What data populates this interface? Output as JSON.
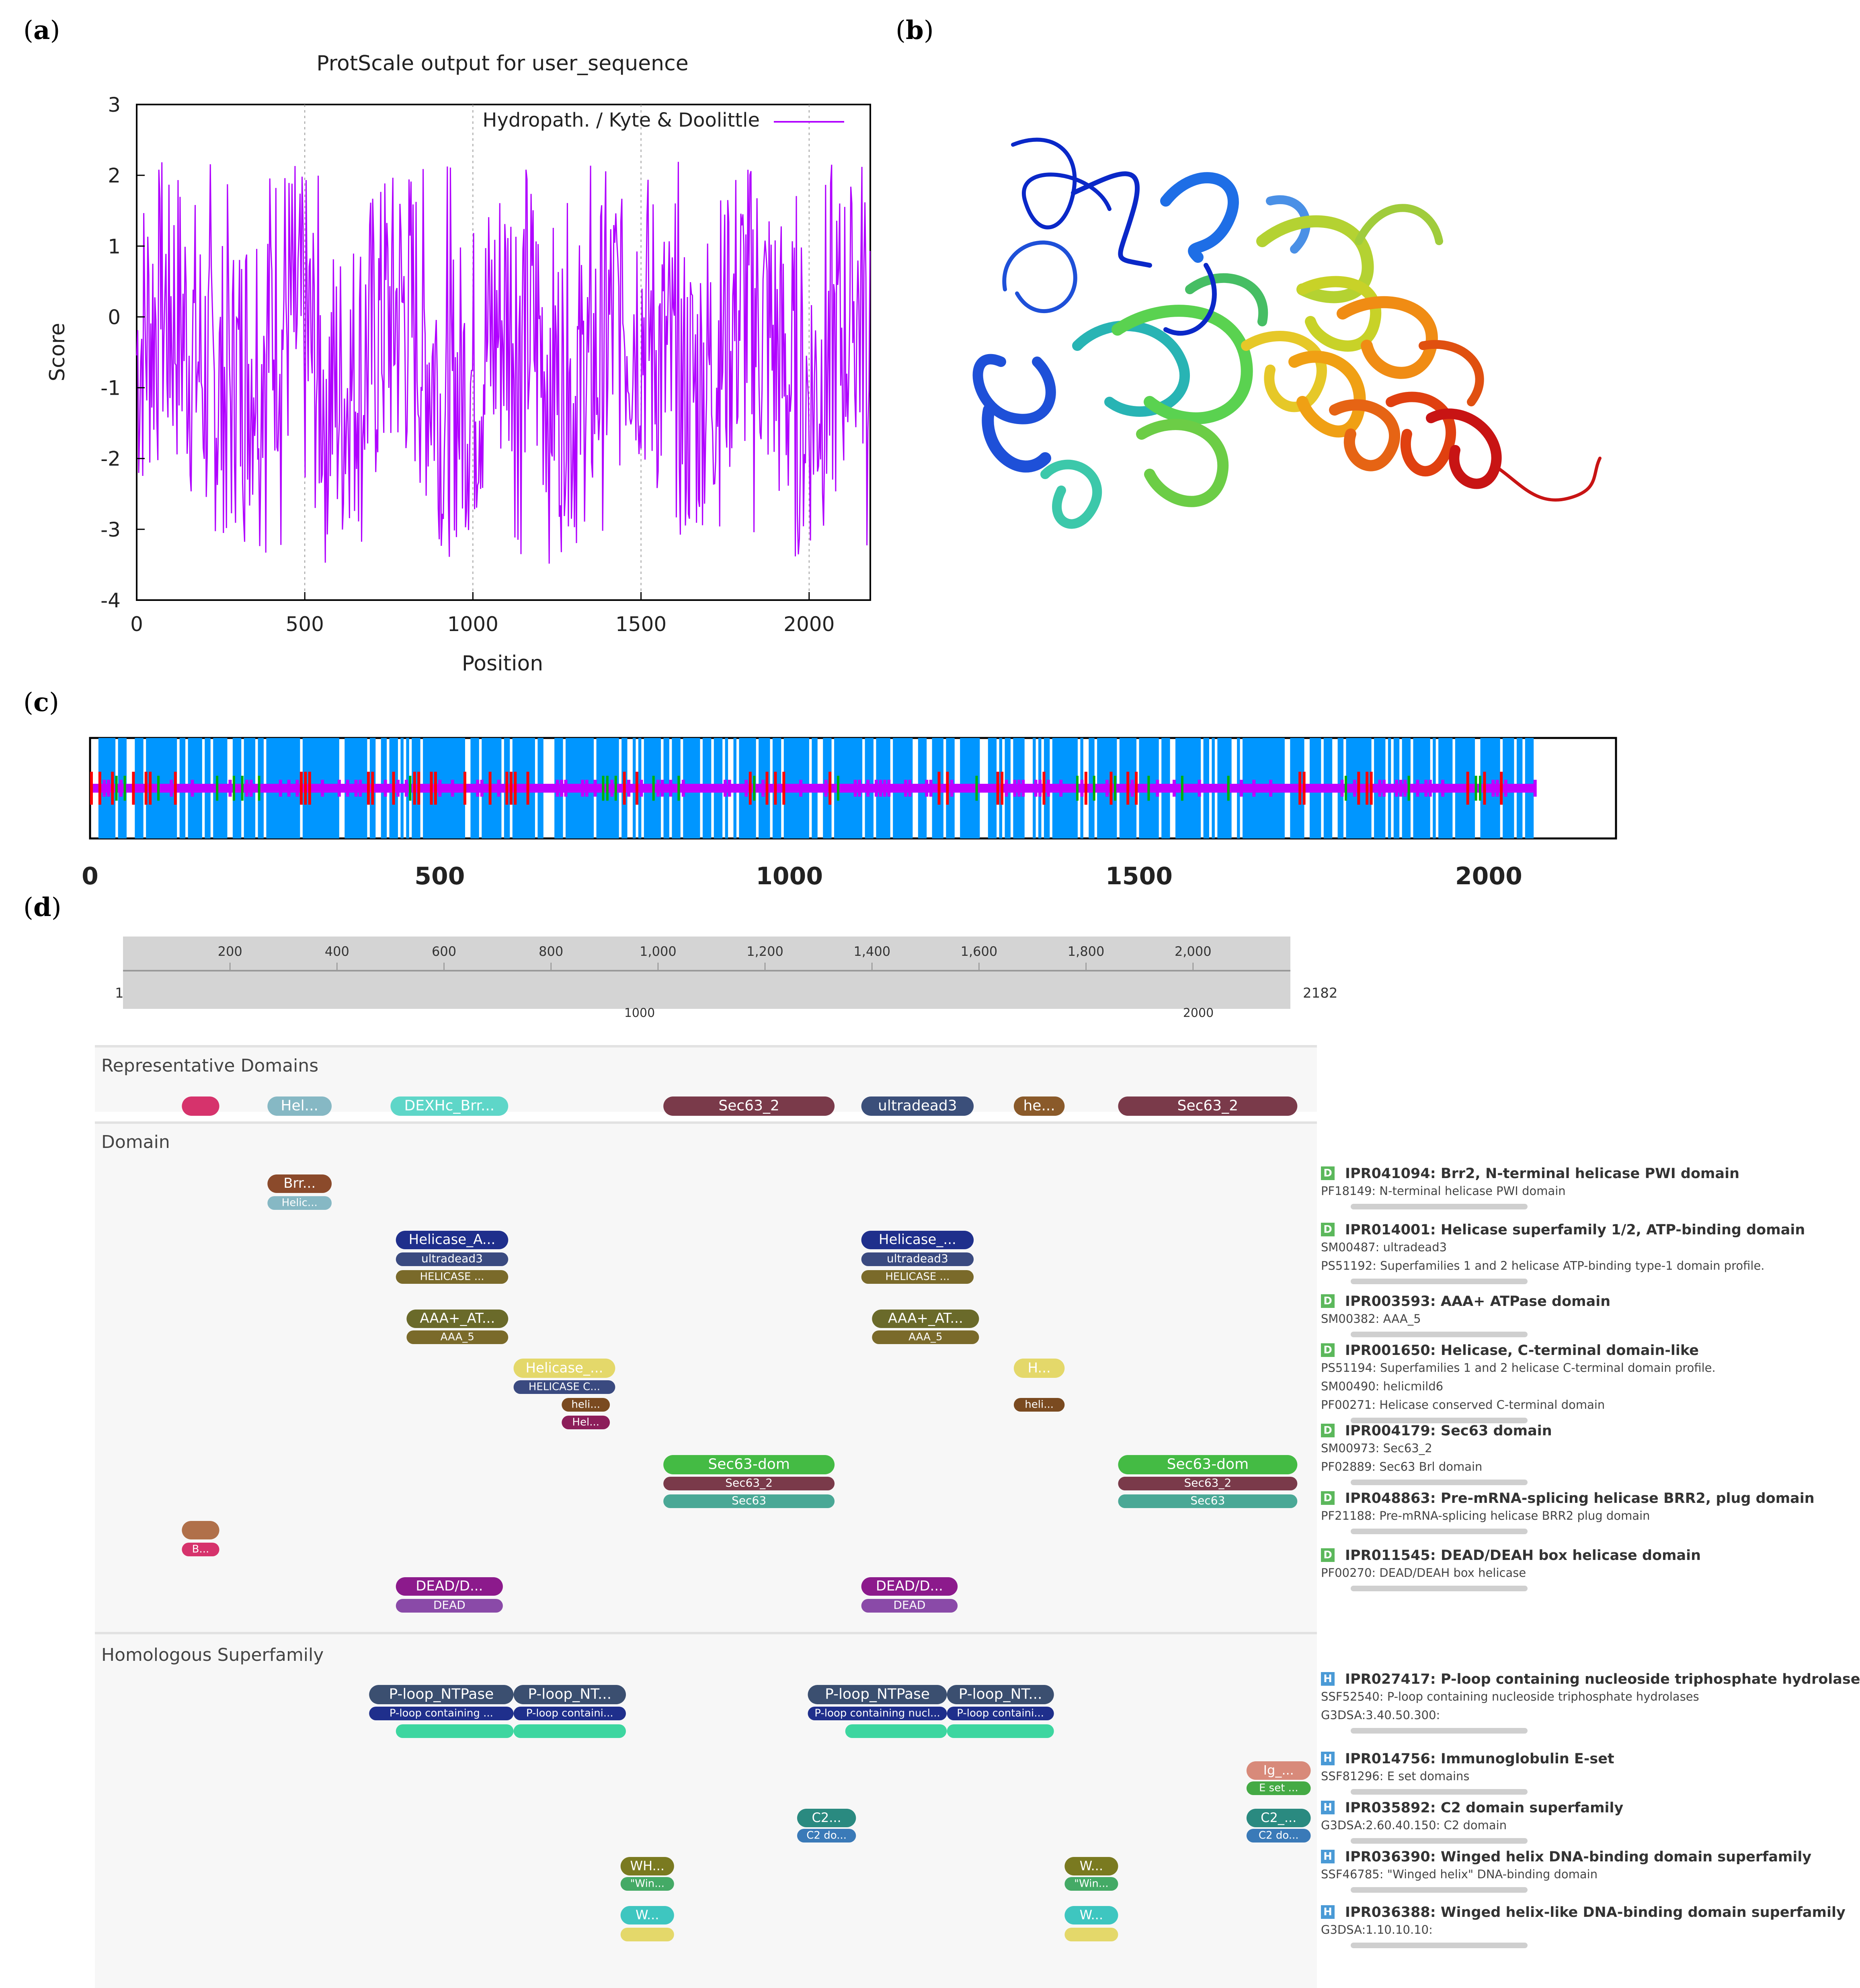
{
  "panels": {
    "a": "a",
    "b": "b",
    "c": "c",
    "d": "d"
  },
  "panel_a": {
    "title": "ProtScale output for user_sequence",
    "legend": "Hydropath. / Kyte & Doolittle",
    "xlabel": "Position",
    "ylabel": "Score",
    "xticks": [
      "0",
      "500",
      "1000",
      "1500",
      "2000"
    ],
    "yticks": [
      "3",
      "2",
      "1",
      "0",
      "-1",
      "-2",
      "-3",
      "-4"
    ],
    "line_color": "#b000ff"
  },
  "panel_b": {
    "description_colors": [
      "#0a28c8",
      "#1e6ee6",
      "#28b4b4",
      "#5ad250",
      "#c8d228",
      "#f08c14",
      "#e04010",
      "#c81414"
    ]
  },
  "panel_c": {
    "xticks": [
      "0",
      "500",
      "1000",
      "1500",
      "2000"
    ],
    "colors": {
      "helix": "#0096ff",
      "strand": "#ff0000",
      "turn": "#00b000",
      "coil": "#c000ff"
    }
  },
  "panel_d": {
    "ruler_ticks": [
      "200",
      "400",
      "600",
      "800",
      "1,000",
      "1,200",
      "1,400",
      "1,600",
      "1,800",
      "2,000"
    ],
    "ruler_start": "1",
    "ruler_end": "2182",
    "ruler_mid": [
      "1000",
      "2000"
    ],
    "sections": {
      "representative": "Representative Domains",
      "domain": "Domain",
      "homologous": "Homologous Superfamily"
    },
    "rep_domains": [
      {
        "label": "",
        "color": "#d6336c"
      },
      {
        "label": "Hel...",
        "color": "#86b8c4"
      },
      {
        "label": "DEXHc_Brr...",
        "color": "#5ed6c8"
      },
      {
        "label": "Sec63_2",
        "color": "#7a3a4a"
      },
      {
        "label": "ultradead3",
        "color": "#3b4f7a"
      },
      {
        "label": "he...",
        "color": "#8a5a2a"
      },
      {
        "label": "Sec63_2",
        "color": "#7a3a4a"
      }
    ],
    "domain_bars": [
      "Brr...",
      "Helic...",
      "Helicase_A...",
      "ultradead3",
      "HELICASE ...",
      "Helicase_...",
      "ultradead3",
      "HELICASE ...",
      "AAA+_AT...",
      "AAA_5",
      "AAA+_AT...",
      "AAA_5",
      "Helicase_...",
      "HELICASE C...",
      "heli...",
      "Hel...",
      "H...",
      "heli...",
      "Sec63-dom",
      "Sec63_2",
      "Sec63",
      "Sec63-dom",
      "Sec63_2",
      "Sec63",
      "B...",
      "DEAD/D...",
      "DEAD",
      "DEAD/D...",
      "DEAD"
    ],
    "homolog_bars": [
      "P-loop_NTPase",
      "P-loop_NT...",
      "P-loop containing ...",
      "P-loop containi...",
      "P-loop_NTPase",
      "P-loop_NT...",
      "P-loop containing nucl...",
      "P-loop containi...",
      "Ig_...",
      "E set ...",
      "C2...",
      "C2 do...",
      "C2_...",
      "C2 do...",
      "WH...",
      "\"Win...",
      "W...",
      "\"Win...",
      "W...",
      "W..."
    ],
    "domain_entries": [
      {
        "badge": "D",
        "code": "IPR041094: Brr2, N-terminal helicase PWI domain",
        "subs": [
          "PF18149: N-terminal helicase PWI domain"
        ]
      },
      {
        "badge": "D",
        "code": "IPR014001: Helicase superfamily 1/2, ATP-binding domain",
        "subs": [
          "SM00487: ultradead3",
          "PS51192: Superfamilies 1 and 2 helicase ATP-binding type-1 domain profile."
        ]
      },
      {
        "badge": "D",
        "code": "IPR003593: AAA+ ATPase domain",
        "subs": [
          "SM00382: AAA_5"
        ]
      },
      {
        "badge": "D",
        "code": "IPR001650: Helicase, C-terminal domain-like",
        "subs": [
          "PS51194: Superfamilies 1 and 2 helicase C-terminal domain profile.",
          "SM00490: helicmild6",
          "PF00271: Helicase conserved C-terminal domain"
        ]
      },
      {
        "badge": "D",
        "code": "IPR004179: Sec63 domain",
        "subs": [
          "SM00973: Sec63_2",
          "PF02889: Sec63 Brl domain"
        ]
      },
      {
        "badge": "D",
        "code": "IPR048863: Pre-mRNA-splicing helicase BRR2, plug domain",
        "subs": [
          "PF21188: Pre-mRNA-splicing helicase BRR2 plug domain"
        ]
      },
      {
        "badge": "D",
        "code": "IPR011545: DEAD/DEAH box helicase domain",
        "subs": [
          "PF00270: DEAD/DEAH box helicase"
        ]
      }
    ],
    "homolog_entries": [
      {
        "badge": "H",
        "code": "IPR027417: P-loop containing nucleoside triphosphate hydrolase",
        "subs": [
          "SSF52540: P-loop containing nucleoside triphosphate hydrolases",
          "G3DSA:3.40.50.300:"
        ]
      },
      {
        "badge": "H",
        "code": "IPR014756: Immunoglobulin E-set",
        "subs": [
          "SSF81296: E set domains"
        ]
      },
      {
        "badge": "H",
        "code": "IPR035892: C2 domain superfamily",
        "subs": [
          "G3DSA:2.60.40.150: C2 domain"
        ]
      },
      {
        "badge": "H",
        "code": "IPR036390: Winged helix DNA-binding domain superfamily",
        "subs": [
          "SSF46785: \"Winged helix\" DNA-binding domain"
        ]
      },
      {
        "badge": "H",
        "code": "IPR036388: Winged helix-like DNA-binding domain superfamily",
        "subs": [
          "G3DSA:1.10.10.10:"
        ]
      }
    ]
  }
}
